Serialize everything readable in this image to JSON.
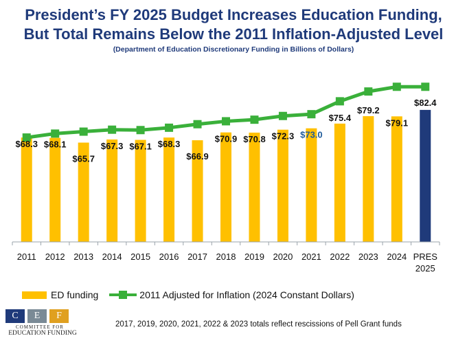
{
  "header": {
    "title_line1": "President’s FY 2025 Budget Increases Education Funding,",
    "title_line2": "But Total Remains Below the 2011 Inflation-Adjusted Level",
    "subtitle": "(Department of Education Discretionary Funding in Billions of Dollars)"
  },
  "chart_data": {
    "type": "bar",
    "categories": [
      "2011",
      "2012",
      "2013",
      "2014",
      "2015",
      "2016",
      "2017",
      "2018",
      "2019",
      "2020",
      "2021",
      "2022",
      "2023",
      "2024",
      "PRES 2025"
    ],
    "series": [
      {
        "name": "ED funding",
        "type": "bar",
        "values": [
          68.3,
          68.1,
          65.7,
          67.3,
          67.1,
          68.3,
          66.9,
          70.9,
          70.8,
          72.3,
          73.0,
          75.4,
          79.2,
          79.1,
          82.4
        ]
      },
      {
        "name": "2011 Adjusted for Inflation (2024 Constant Dollars)",
        "type": "line",
        "values": [
          68.3,
          70.3,
          71.3,
          72.3,
          72.1,
          73.3,
          75.1,
          76.6,
          77.4,
          79.3,
          80.2,
          86.8,
          91.8,
          94.2,
          94.2
        ]
      }
    ],
    "data_labels": [
      "$68.3",
      "$68.1",
      "$65.7",
      "$67.3",
      "$67.1",
      "$68.3",
      "$66.9",
      "$70.9",
      "$70.8",
      "$72.3",
      "$73.0",
      "$75.4",
      "$79.2",
      "$79.1",
      "$82.4"
    ],
    "ylim": [
      0,
      100
    ],
    "grid": false,
    "legend_position": "bottom",
    "colors": {
      "bar": "#ffc000",
      "bar_highlight": "#1f3a7a",
      "line": "#3ab03a",
      "label_highlight": "#1f5b9a"
    }
  },
  "legend": {
    "bar_label": "ED funding",
    "line_label": "2011 Adjusted for Inflation (2024 Constant Dollars)"
  },
  "logo": {
    "letters": [
      "C",
      "E",
      "F"
    ],
    "line1": "COMMITTEE FOR",
    "line2": "EDUCATION FUNDING",
    "colors": [
      "#1f3a7a",
      "#7a8a96",
      "#e0a020"
    ]
  },
  "footnote": "2017, 2019, 2020, 2021, 2022 & 2023 totals reflect rescissions of Pell Grant funds"
}
